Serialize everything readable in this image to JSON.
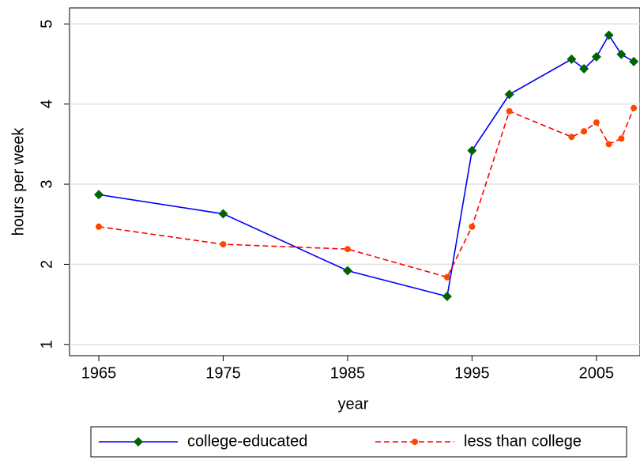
{
  "chart_data": {
    "type": "line",
    "x": [
      1965,
      1975,
      1985,
      1993,
      1995,
      1998,
      2003,
      2004,
      2005,
      2006,
      2007,
      2008
    ],
    "series": [
      {
        "name": "college-educated",
        "color": "#0000ff",
        "marker_color": "#006400",
        "dash": false,
        "values": [
          2.87,
          2.63,
          1.92,
          1.6,
          3.42,
          4.12,
          4.56,
          4.44,
          4.59,
          4.86,
          4.62,
          4.53
        ]
      },
      {
        "name": "less than college",
        "color": "#ff0000",
        "marker_color": "#ff4500",
        "dash": true,
        "values": [
          2.47,
          2.25,
          2.19,
          1.84,
          2.47,
          3.91,
          3.59,
          3.66,
          3.77,
          3.5,
          3.57,
          3.95
        ]
      }
    ],
    "xlabel": "year",
    "ylabel": "hours per week",
    "xlim": [
      1962.65,
      2008.5
    ],
    "xticks": [
      1965,
      1975,
      1985,
      1995,
      2005
    ],
    "ylim": [
      0.86,
      5.2
    ],
    "yticks": [
      1,
      2,
      3,
      4,
      5
    ],
    "grid": true,
    "legend": "bottom"
  }
}
